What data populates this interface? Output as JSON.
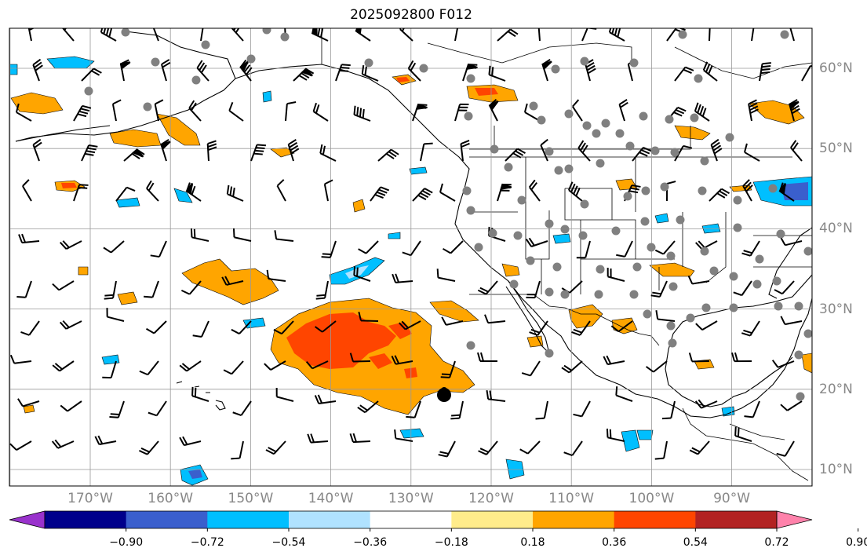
{
  "title": "2025092800 F012",
  "lon_labels": [
    {
      "lon": -170,
      "text": "170°W"
    },
    {
      "lon": -160,
      "text": "160°W"
    },
    {
      "lon": -150,
      "text": "150°W"
    },
    {
      "lon": -140,
      "text": "140°W"
    },
    {
      "lon": -130,
      "text": "130°W"
    },
    {
      "lon": -120,
      "text": "120°W"
    },
    {
      "lon": -110,
      "text": "110°W"
    },
    {
      "lon": -100,
      "text": "100°W"
    },
    {
      "lon": -90,
      "text": "90°W"
    }
  ],
  "lat_labels": [
    {
      "lat": 60,
      "text": "60°N"
    },
    {
      "lat": 50,
      "text": "50°N"
    },
    {
      "lat": 40,
      "text": "40°N"
    },
    {
      "lat": 30,
      "text": "30°N"
    },
    {
      "lat": 20,
      "text": "20°N"
    },
    {
      "lat": 10,
      "text": "10°N"
    }
  ],
  "colorbar": {
    "colors": [
      "#9932cc",
      "#00008b",
      "#3a5fcd",
      "#00bfff",
      "#b0e2ff",
      "#ffffff",
      "#ffec8b",
      "#ffa500",
      "#ff4500",
      "#b22222",
      "#ff82ab"
    ],
    "tick_labels": [
      "−0.90",
      "−0.72",
      "−0.54",
      "−0.36",
      "−0.18",
      "0.18",
      "0.36",
      "0.54",
      "0.72",
      "0.90"
    ]
  },
  "colors": {
    "land_outline": "#000000",
    "grid": "#999999",
    "station_dot": "#808080"
  }
}
